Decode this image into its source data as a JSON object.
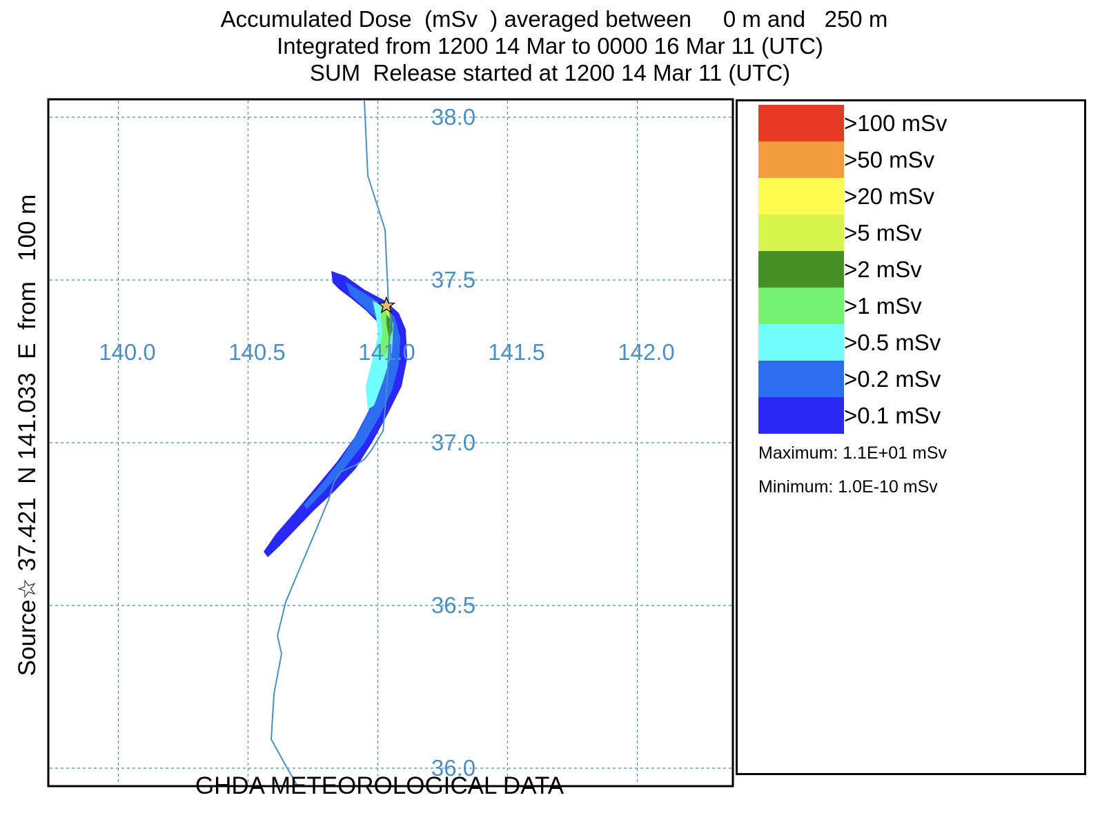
{
  "title": {
    "line1": "Accumulated Dose  (mSv  ) averaged between     0 m and   250 m",
    "line2": "Integrated from 1200 14 Mar to 0000 16 Mar 11 (UTC)",
    "line3": "SUM  Release started at 1200 14 Mar 11 (UTC)"
  },
  "side_label": "Source☆ 37.421  N 141.033  E  from   100 m",
  "footer": "GHDA METEOROLOGICAL DATA",
  "map": {
    "lon_labels": [
      "140.0",
      "140.5",
      "141.0",
      "141.5",
      "142.0"
    ],
    "lat_labels": [
      "38.0",
      "37.5",
      "37.0",
      "36.5",
      "36.0"
    ],
    "source": {
      "lat": 37.421,
      "lon": 141.033,
      "symbol": "star"
    },
    "grid": "dashed",
    "coastline_color": "#4a90c4",
    "plume_colors": [
      "#2a28f5",
      "#2c6df2",
      "#72fdfd",
      "#74f373",
      "#459027",
      "#d6f64e"
    ]
  },
  "legend": {
    "items": [
      {
        "label": ">100 mSv",
        "color": "#e63a27"
      },
      {
        "label": ">50 mSv",
        "color": "#f29e3e"
      },
      {
        "label": ">20 mSv",
        "color": "#fdfd4f"
      },
      {
        "label": ">5 mSv",
        "color": "#d6f64e"
      },
      {
        "label": ">2 mSv",
        "color": "#459027"
      },
      {
        "label": ">1 mSv",
        "color": "#74f373"
      },
      {
        "label": ">0.5 mSv",
        "color": "#72fdfd"
      },
      {
        "label": ">0.2 mSv",
        "color": "#2c6df2"
      },
      {
        "label": ">0.1 mSv",
        "color": "#2a28f5"
      }
    ],
    "maximum": "Maximum: 1.1E+01 mSv",
    "minimum": "Minimum: 1.0E-10 mSv"
  }
}
